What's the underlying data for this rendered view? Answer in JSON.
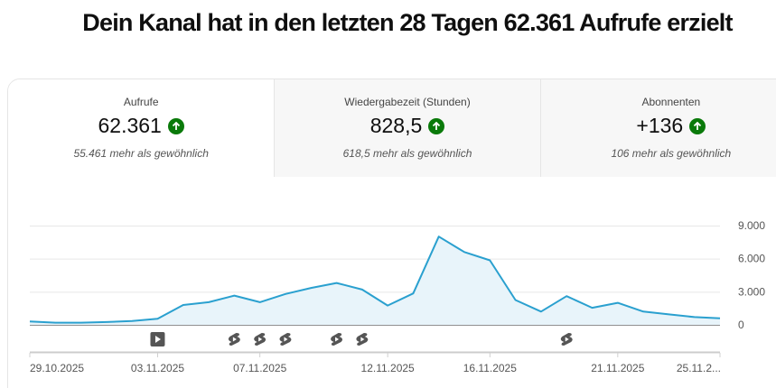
{
  "headline": "Dein Kanal hat in den letzten 28 Tagen 62.361 Aufrufe erzielt",
  "tabs": [
    {
      "label": "Aufrufe",
      "value": "62.361",
      "trend_icon": "arrow-up-circle-icon",
      "sub": "55.461 mehr als gewöhnlich"
    },
    {
      "label": "Wiedergabezeit (Stunden)",
      "value": "828,5",
      "trend_icon": "arrow-up-circle-icon",
      "sub": "618,5 mehr als gewöhnlich"
    },
    {
      "label": "Abonnenten",
      "value": "+136",
      "trend_icon": "arrow-up-circle-icon",
      "sub": "106 mehr als gewöhnlich"
    }
  ],
  "colors": {
    "line": "#2aa0cf",
    "fill": "#e8f4fa",
    "trend_up": "#0a7a0a",
    "grid": "#e8e8e8",
    "marker": "#555555"
  },
  "chart_data": {
    "type": "area",
    "title": "Aufrufe",
    "xlabel": "",
    "ylabel": "",
    "ylim": [
      0,
      9000
    ],
    "grid": true,
    "y_axis_position": "right",
    "y_ticks": [
      "9.000",
      "6.000",
      "3.000",
      "0"
    ],
    "x_tick_labels": [
      "29.10.2025",
      "03.11.2025",
      "07.11.2025",
      "12.11.2025",
      "16.11.2025",
      "21.11.2025",
      "25.11.2..."
    ],
    "x": [
      "29.10",
      "30.10",
      "31.10",
      "01.11",
      "02.11",
      "03.11",
      "04.11",
      "05.11",
      "06.11",
      "07.11",
      "08.11",
      "09.11",
      "10.11",
      "11.11",
      "12.11",
      "13.11",
      "14.11",
      "15.11",
      "16.11",
      "17.11",
      "18.11",
      "19.11",
      "20.11",
      "21.11",
      "22.11",
      "23.11",
      "24.11",
      "25.11"
    ],
    "series": [
      {
        "name": "Aufrufe",
        "values": [
          300,
          200,
          200,
          250,
          350,
          550,
          1800,
          2050,
          2650,
          2050,
          2800,
          3350,
          3800,
          3200,
          1750,
          2850,
          8000,
          6600,
          5850,
          2250,
          1200,
          2600,
          1550,
          2000,
          1200,
          950,
          700,
          600
        ]
      }
    ],
    "publish_markers": [
      {
        "date": "03.11",
        "type": "video",
        "icon": "video-play-icon"
      },
      {
        "date": "06.11",
        "type": "short",
        "icon": "shorts-icon"
      },
      {
        "date": "07.11",
        "type": "short",
        "icon": "shorts-icon"
      },
      {
        "date": "08.11",
        "type": "short",
        "icon": "shorts-icon"
      },
      {
        "date": "10.11",
        "type": "short",
        "icon": "shorts-icon"
      },
      {
        "date": "11.11",
        "type": "short",
        "icon": "shorts-icon"
      },
      {
        "date": "19.11",
        "type": "short",
        "icon": "shorts-icon"
      }
    ]
  }
}
